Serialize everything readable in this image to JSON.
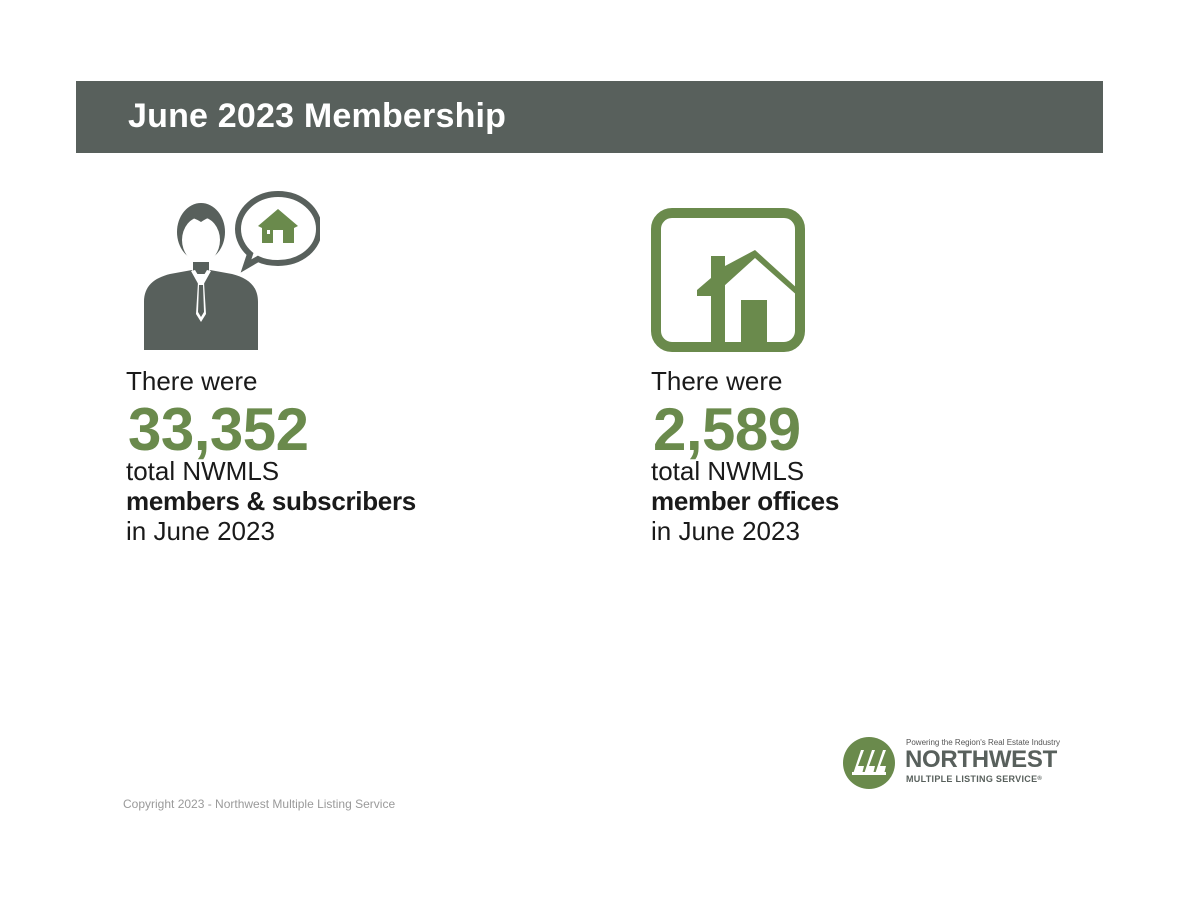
{
  "header": {
    "title": "June 2023 Membership"
  },
  "colors": {
    "header_band": "#58605c",
    "accent_green": "#6a8a4c",
    "icon_gray": "#58605c"
  },
  "stats": [
    {
      "icon": "person-with-house-speech-bubble-icon",
      "lead": "There were",
      "value": "33,352",
      "line1": "total NWMLS",
      "line2": "members & subscribers",
      "line3": "in June 2023"
    },
    {
      "icon": "house-in-square-icon",
      "lead": "There were",
      "value": "2,589",
      "line1": "total NWMLS",
      "line2": "member offices",
      "line3": "in June 2023"
    }
  ],
  "footer": {
    "copyright": "Copyright 2023 - Northwest Multiple Listing Service"
  },
  "logo": {
    "tagline": "Powering the Region's Real Estate Industry",
    "name": "NORTHWEST",
    "subname": "MULTIPLE LISTING SERVICE",
    "registered": "®"
  }
}
